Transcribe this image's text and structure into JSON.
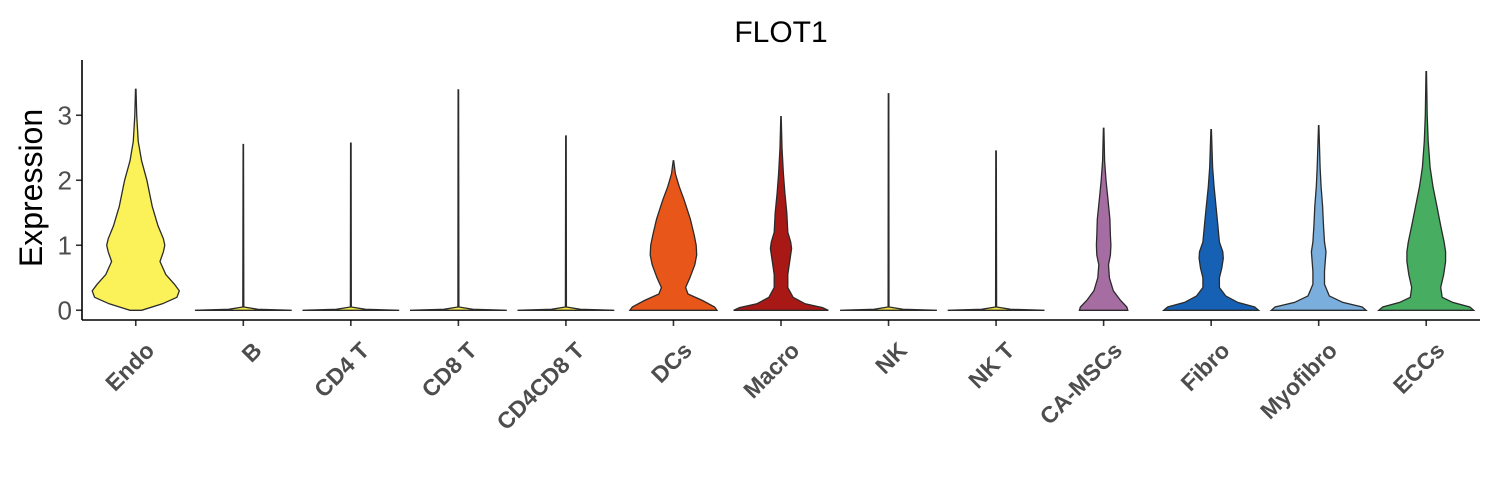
{
  "chart_data": {
    "type": "violin",
    "title": "FLOT1",
    "xlabel": "",
    "ylabel": "Expression",
    "ylim": [
      -0.15,
      3.85
    ],
    "yticks": [
      0,
      1,
      2,
      3
    ],
    "legend": "none",
    "grid": false,
    "categories": [
      "Endo",
      "B",
      "CD4 T",
      "CD8 T",
      "CD4CD8 T",
      "DCs",
      "Macro",
      "NK",
      "NK T",
      "CA-MSCs",
      "Fibro",
      "Myofibro",
      "ECCs"
    ],
    "series": [
      {
        "category": "Endo",
        "color": "#FBF259",
        "max": 3.4,
        "profile": [
          [
            0,
            0.12
          ],
          [
            0.1,
            0.55
          ],
          [
            0.2,
            0.85
          ],
          [
            0.3,
            0.9
          ],
          [
            0.4,
            0.8
          ],
          [
            0.55,
            0.62
          ],
          [
            0.75,
            0.5
          ],
          [
            0.9,
            0.57
          ],
          [
            1.0,
            0.6
          ],
          [
            1.1,
            0.57
          ],
          [
            1.3,
            0.46
          ],
          [
            1.6,
            0.34
          ],
          [
            2.0,
            0.23
          ],
          [
            2.3,
            0.12
          ],
          [
            2.6,
            0.05
          ],
          [
            3.0,
            0.02
          ],
          [
            3.4,
            0.005
          ]
        ]
      },
      {
        "category": "B",
        "color": "#F3EB45",
        "max": 2.55,
        "profile": [
          [
            0,
            1.0
          ],
          [
            0.015,
            0.3
          ],
          [
            0.05,
            0.01
          ],
          [
            2.55,
            0.005
          ]
        ]
      },
      {
        "category": "CD4 T",
        "color": "#F4EC4A",
        "max": 2.57,
        "profile": [
          [
            0,
            1.0
          ],
          [
            0.015,
            0.3
          ],
          [
            0.05,
            0.01
          ],
          [
            2.57,
            0.005
          ]
        ]
      },
      {
        "category": "CD8 T",
        "color": "#F5E84A",
        "max": 3.39,
        "profile": [
          [
            0,
            1.0
          ],
          [
            0.015,
            0.3
          ],
          [
            0.05,
            0.01
          ],
          [
            3.39,
            0.005
          ]
        ]
      },
      {
        "category": "CD4CD8 T",
        "color": "#F2E03E",
        "max": 2.68,
        "profile": [
          [
            0,
            1.0
          ],
          [
            0.015,
            0.3
          ],
          [
            0.05,
            0.01
          ],
          [
            2.68,
            0.005
          ]
        ]
      },
      {
        "category": "DCs",
        "color": "#E8561A",
        "max": 2.3,
        "profile": [
          [
            0,
            0.9
          ],
          [
            0.05,
            0.85
          ],
          [
            0.15,
            0.6
          ],
          [
            0.25,
            0.3
          ],
          [
            0.35,
            0.25
          ],
          [
            0.5,
            0.34
          ],
          [
            0.7,
            0.44
          ],
          [
            0.85,
            0.48
          ],
          [
            1.0,
            0.47
          ],
          [
            1.15,
            0.43
          ],
          [
            1.4,
            0.35
          ],
          [
            1.7,
            0.22
          ],
          [
            1.9,
            0.12
          ],
          [
            2.1,
            0.04
          ],
          [
            2.3,
            0.005
          ]
        ]
      },
      {
        "category": "Macro",
        "color": "#A81916",
        "max": 2.98,
        "profile": [
          [
            0,
            0.98
          ],
          [
            0.04,
            0.86
          ],
          [
            0.1,
            0.5
          ],
          [
            0.2,
            0.25
          ],
          [
            0.35,
            0.14
          ],
          [
            0.55,
            0.14
          ],
          [
            0.75,
            0.18
          ],
          [
            0.95,
            0.22
          ],
          [
            1.05,
            0.2
          ],
          [
            1.2,
            0.14
          ],
          [
            1.5,
            0.12
          ],
          [
            1.8,
            0.08
          ],
          [
            2.1,
            0.05
          ],
          [
            2.5,
            0.02
          ],
          [
            2.98,
            0.005
          ]
        ]
      },
      {
        "category": "NK",
        "color": "#F0E040",
        "max": 3.33,
        "profile": [
          [
            0,
            1.0
          ],
          [
            0.015,
            0.3
          ],
          [
            0.05,
            0.01
          ],
          [
            3.33,
            0.005
          ]
        ]
      },
      {
        "category": "NK T",
        "color": "#F0E040",
        "max": 2.45,
        "profile": [
          [
            0,
            1.0
          ],
          [
            0.015,
            0.3
          ],
          [
            0.05,
            0.01
          ],
          [
            2.45,
            0.005
          ]
        ]
      },
      {
        "category": "CA-MSCs",
        "color": "#A56DA1",
        "max": 2.8,
        "profile": [
          [
            0,
            0.5
          ],
          [
            0.05,
            0.48
          ],
          [
            0.15,
            0.35
          ],
          [
            0.3,
            0.2
          ],
          [
            0.5,
            0.12
          ],
          [
            0.7,
            0.1
          ],
          [
            0.85,
            0.14
          ],
          [
            1.0,
            0.15
          ],
          [
            1.15,
            0.14
          ],
          [
            1.4,
            0.13
          ],
          [
            1.7,
            0.09
          ],
          [
            2.0,
            0.05
          ],
          [
            2.3,
            0.02
          ],
          [
            2.8,
            0.005
          ]
        ]
      },
      {
        "category": "Fibro",
        "color": "#1761B5",
        "max": 2.78,
        "profile": [
          [
            0,
            0.98
          ],
          [
            0.05,
            0.9
          ],
          [
            0.12,
            0.55
          ],
          [
            0.22,
            0.3
          ],
          [
            0.35,
            0.17
          ],
          [
            0.5,
            0.17
          ],
          [
            0.65,
            0.22
          ],
          [
            0.8,
            0.25
          ],
          [
            0.9,
            0.24
          ],
          [
            1.05,
            0.17
          ],
          [
            1.3,
            0.14
          ],
          [
            1.6,
            0.1
          ],
          [
            1.9,
            0.06
          ],
          [
            2.2,
            0.03
          ],
          [
            2.78,
            0.005
          ]
        ]
      },
      {
        "category": "Myofibro",
        "color": "#7AAEDC",
        "max": 2.84,
        "profile": [
          [
            0,
            0.98
          ],
          [
            0.05,
            0.9
          ],
          [
            0.12,
            0.5
          ],
          [
            0.22,
            0.22
          ],
          [
            0.4,
            0.12
          ],
          [
            0.6,
            0.12
          ],
          [
            0.8,
            0.14
          ],
          [
            0.9,
            0.15
          ],
          [
            1.05,
            0.12
          ],
          [
            1.3,
            0.1
          ],
          [
            1.6,
            0.08
          ],
          [
            1.9,
            0.05
          ],
          [
            2.2,
            0.03
          ],
          [
            2.84,
            0.005
          ]
        ]
      },
      {
        "category": "ECCs",
        "color": "#46AD61",
        "max": 3.67,
        "profile": [
          [
            0,
            0.98
          ],
          [
            0.05,
            0.9
          ],
          [
            0.12,
            0.55
          ],
          [
            0.2,
            0.33
          ],
          [
            0.35,
            0.3
          ],
          [
            0.55,
            0.36
          ],
          [
            0.75,
            0.4
          ],
          [
            0.9,
            0.4
          ],
          [
            1.05,
            0.37
          ],
          [
            1.3,
            0.3
          ],
          [
            1.6,
            0.22
          ],
          [
            1.9,
            0.14
          ],
          [
            2.2,
            0.08
          ],
          [
            2.6,
            0.04
          ],
          [
            3.0,
            0.02
          ],
          [
            3.67,
            0.005
          ]
        ]
      }
    ]
  }
}
